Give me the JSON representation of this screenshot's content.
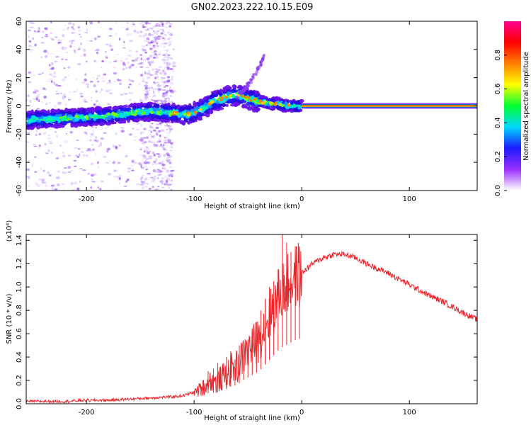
{
  "title": "GN02.2023.222.10.15.E09",
  "colors": {
    "background": "#ffffff",
    "snr_line": "#e8262a",
    "spectrogram_scatter": "#8a3cf0",
    "band_line_outer": "#1a3cff",
    "band_line_inner": "#ff1a1a"
  },
  "chart_data": [
    {
      "name": "spectrogram",
      "type": "heatmap",
      "title": "",
      "xlabel": "Height of straight line (km)",
      "ylabel": "Frequency (Hz)",
      "xlim": [
        -256,
        163
      ],
      "ylim": [
        -60,
        60
      ],
      "xticks": [
        "-200",
        "-100",
        "0",
        "100"
      ],
      "xtick_values": [
        -200,
        -100,
        0,
        100
      ],
      "yticks": [
        "-60",
        "-40",
        "-20",
        "0",
        "20",
        "40",
        "60"
      ],
      "ytick_values": [
        -60,
        -40,
        -20,
        0,
        20,
        40,
        60
      ],
      "colorbar": {
        "label": "Normalized spectral amplitude",
        "range": [
          0,
          1
        ],
        "ticks": [
          "0.0",
          "0.2",
          "0.4",
          "0.6",
          "0.8"
        ],
        "tick_values": [
          0.0,
          0.2,
          0.4,
          0.6,
          0.8
        ],
        "colormap": [
          "#ffffff",
          "#9b30ff",
          "#1b1bff",
          "#00d8ff",
          "#00ff30",
          "#ffff00",
          "#ff8000",
          "#ff0000",
          "#ff0090"
        ]
      },
      "ridge": {
        "x": [
          -256,
          -230,
          -200,
          -180,
          -160,
          -140,
          -120,
          -110,
          -100,
          -90,
          -80,
          -70,
          -60,
          -50,
          -40,
          -30,
          -20,
          -10,
          0,
          163
        ],
        "y": [
          -10,
          -9,
          -8,
          -7,
          -5,
          -4,
          -5,
          -6,
          -5,
          -1,
          4,
          6,
          8,
          5,
          3,
          2,
          1,
          0,
          0,
          0
        ]
      },
      "constant_band": {
        "x": [
          0,
          163
        ],
        "frequency": 0,
        "amplitude": 1.0
      },
      "upper_branch": {
        "x": [
          -60,
          -50,
          -42,
          -38,
          -35
        ],
        "y": [
          6,
          15,
          24,
          30,
          34
        ]
      }
    },
    {
      "name": "snr",
      "type": "line",
      "title": "",
      "xlabel": "Height of straight line (km)",
      "ylabel": "SNR (10 * v/v)",
      "yscale_label": "(x10⁴)",
      "xlim": [
        -256,
        163
      ],
      "ylim": [
        0,
        1.45
      ],
      "xticks": [
        "-200",
        "-100",
        "0",
        "100"
      ],
      "xtick_values": [
        -200,
        -100,
        0,
        100
      ],
      "yticks": [
        "0.0",
        "0.2",
        "0.4",
        "0.6",
        "0.8",
        "1.0",
        "1.2",
        "1.4"
      ],
      "ytick_values": [
        0.0,
        0.2,
        0.4,
        0.6,
        0.8,
        1.0,
        1.2,
        1.4
      ],
      "series": [
        {
          "x": [
            -256,
            -240,
            -220,
            -200,
            -180,
            -160,
            -140,
            -120,
            -110,
            -100,
            -95,
            -90,
            -85,
            -80,
            -75,
            -70,
            -65,
            -60,
            -55,
            -50,
            -45,
            -40,
            -35,
            -30,
            -25,
            -20,
            -15,
            -10,
            -5,
            0,
            10,
            20,
            30,
            40,
            50,
            60,
            70,
            80,
            90,
            100,
            110,
            120,
            130,
            140,
            150,
            163
          ],
          "y": [
            0.02,
            0.02,
            0.02,
            0.03,
            0.03,
            0.04,
            0.05,
            0.06,
            0.07,
            0.1,
            0.12,
            0.15,
            0.2,
            0.18,
            0.22,
            0.25,
            0.3,
            0.32,
            0.4,
            0.45,
            0.5,
            0.55,
            0.65,
            0.75,
            0.85,
            0.95,
            1.0,
            1.05,
            1.1,
            1.12,
            1.2,
            1.25,
            1.28,
            1.28,
            1.25,
            1.2,
            1.16,
            1.12,
            1.07,
            1.02,
            0.97,
            0.92,
            0.88,
            0.83,
            0.78,
            0.72
          ]
        }
      ],
      "spikes": {
        "x": [
          -92,
          -87,
          -82,
          -78,
          -74,
          -70,
          -66,
          -62,
          -58,
          -54,
          -50,
          -46,
          -42,
          -38,
          -34,
          -30,
          -26,
          -22,
          -18,
          -14,
          -10,
          -6,
          -2
        ],
        "y": [
          0.2,
          0.28,
          0.3,
          0.35,
          0.3,
          0.4,
          0.45,
          0.38,
          0.5,
          0.42,
          0.55,
          0.62,
          0.7,
          0.8,
          0.9,
          1.0,
          1.05,
          1.15,
          1.45,
          1.38,
          1.3,
          1.25,
          1.22
        ]
      }
    }
  ]
}
